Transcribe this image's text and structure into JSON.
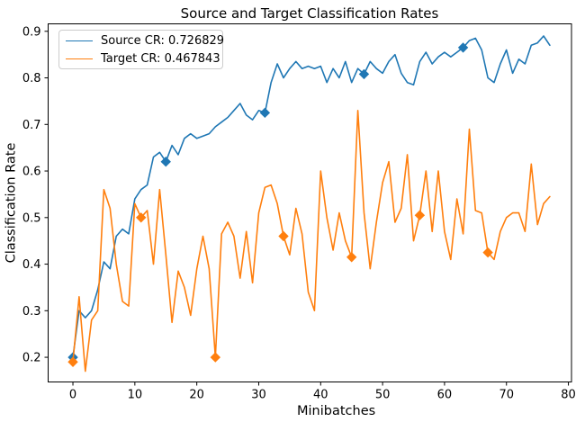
{
  "title": "Source and Target Classification Rates",
  "axes": {
    "xlabel": "Minibatches",
    "ylabel": "Classification Rate"
  },
  "legend": {
    "position": "upper left",
    "entries": [
      {
        "label": "Source CR: 0.726829",
        "color": "#1f77b4"
      },
      {
        "label": "Target CR: 0.467843",
        "color": "#ff7f0e"
      }
    ]
  },
  "chart_data": {
    "type": "line",
    "title": "Source and Target Classification Rates",
    "xlabel": "Minibatches",
    "ylabel": "Classification Rate",
    "xlim": [
      -4.0,
      80.5
    ],
    "ylim": [
      0.147,
      0.916
    ],
    "xticks": [
      0,
      10,
      20,
      30,
      40,
      50,
      60,
      70,
      80
    ],
    "yticks": [
      0.2,
      0.3,
      0.4,
      0.5,
      0.6,
      0.7,
      0.8,
      0.9
    ],
    "grid": false,
    "legend_position": "upper left",
    "series": [
      {
        "name": "Source CR: 0.726829",
        "color": "#1f77b4",
        "marker": "diamond",
        "marker_x": [
          0,
          15,
          31,
          47,
          63
        ],
        "x0": 0,
        "dx": 1,
        "values": [
          0.2,
          0.3,
          0.285,
          0.3,
          0.345,
          0.405,
          0.39,
          0.46,
          0.475,
          0.465,
          0.54,
          0.56,
          0.57,
          0.63,
          0.64,
          0.62,
          0.655,
          0.635,
          0.67,
          0.68,
          0.67,
          0.675,
          0.68,
          0.695,
          0.705,
          0.715,
          0.73,
          0.745,
          0.72,
          0.71,
          0.73,
          0.725,
          0.79,
          0.83,
          0.8,
          0.82,
          0.835,
          0.82,
          0.825,
          0.82,
          0.825,
          0.79,
          0.82,
          0.8,
          0.835,
          0.79,
          0.82,
          0.808,
          0.835,
          0.82,
          0.81,
          0.835,
          0.85,
          0.81,
          0.79,
          0.785,
          0.835,
          0.855,
          0.83,
          0.845,
          0.855,
          0.845,
          0.855,
          0.865,
          0.88,
          0.885,
          0.86,
          0.8,
          0.79,
          0.83,
          0.86,
          0.81,
          0.84,
          0.83,
          0.87,
          0.875,
          0.89,
          0.87
        ]
      },
      {
        "name": "Target CR: 0.467843",
        "color": "#ff7f0e",
        "marker": "diamond",
        "marker_x": [
          0,
          11,
          23,
          34,
          45,
          56,
          67
        ],
        "x0": 0,
        "dx": 1,
        "values": [
          0.19,
          0.33,
          0.17,
          0.28,
          0.3,
          0.56,
          0.52,
          0.4,
          0.32,
          0.31,
          0.53,
          0.5,
          0.515,
          0.4,
          0.56,
          0.42,
          0.275,
          0.385,
          0.35,
          0.29,
          0.39,
          0.46,
          0.39,
          0.2,
          0.465,
          0.49,
          0.46,
          0.37,
          0.47,
          0.36,
          0.51,
          0.565,
          0.57,
          0.53,
          0.46,
          0.42,
          0.52,
          0.465,
          0.34,
          0.3,
          0.6,
          0.5,
          0.43,
          0.51,
          0.45,
          0.415,
          0.73,
          0.51,
          0.39,
          0.49,
          0.575,
          0.62,
          0.49,
          0.52,
          0.635,
          0.45,
          0.505,
          0.6,
          0.47,
          0.6,
          0.47,
          0.41,
          0.54,
          0.465,
          0.69,
          0.515,
          0.51,
          0.425,
          0.41,
          0.47,
          0.5,
          0.51,
          0.51,
          0.47,
          0.615,
          0.485,
          0.53,
          0.545
        ]
      }
    ]
  }
}
